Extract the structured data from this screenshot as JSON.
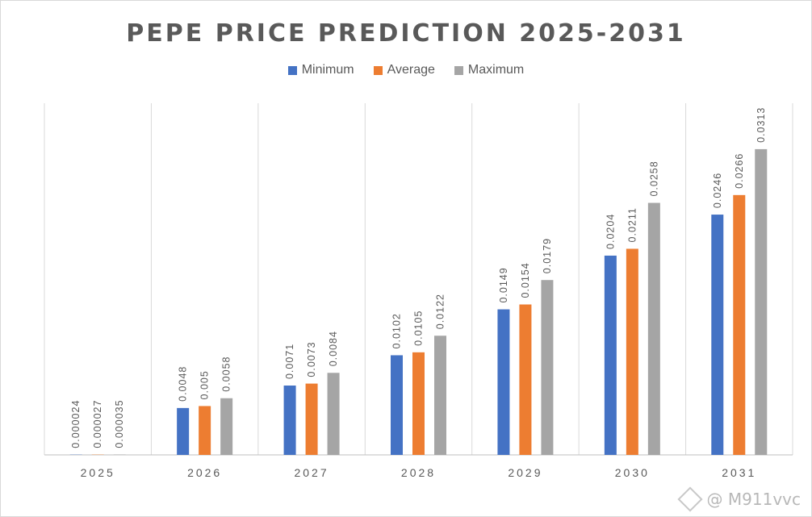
{
  "chart_data": {
    "type": "bar",
    "title": "PEPE PRICE PREDICTION 2025-2031",
    "categories": [
      "2025",
      "2026",
      "2027",
      "2028",
      "2029",
      "2030",
      "2031"
    ],
    "series": [
      {
        "name": "Minimum",
        "color": "#4472c4",
        "values": [
          2.4e-05,
          0.0048,
          0.0071,
          0.0102,
          0.0149,
          0.0204,
          0.0246
        ],
        "labels": [
          "0.000024",
          "0.0048",
          "0.0071",
          "0.0102",
          "0.0149",
          "0.0204",
          "0.0246"
        ]
      },
      {
        "name": "Average",
        "color": "#ed7d31",
        "values": [
          2.7e-05,
          0.005,
          0.0073,
          0.0105,
          0.0154,
          0.0211,
          0.0266
        ],
        "labels": [
          "0.000027",
          "0.005",
          "0.0073",
          "0.0105",
          "0.0154",
          "0.0211",
          "0.0266"
        ]
      },
      {
        "name": "Maximum",
        "color": "#a5a5a5",
        "values": [
          3.5e-05,
          0.0058,
          0.0084,
          0.0122,
          0.0179,
          0.0258,
          0.0313
        ],
        "labels": [
          "0.000035",
          "0.0058",
          "0.0084",
          "0.0122",
          "0.0179",
          "0.0258",
          "0.0313"
        ]
      }
    ],
    "ylim": [
      0,
      0.036
    ],
    "legend_position": "top-center",
    "grid": "vertical-category-separators"
  },
  "watermark": {
    "text": "@ M911vvc",
    "icon": "binance-square-logo-icon"
  }
}
